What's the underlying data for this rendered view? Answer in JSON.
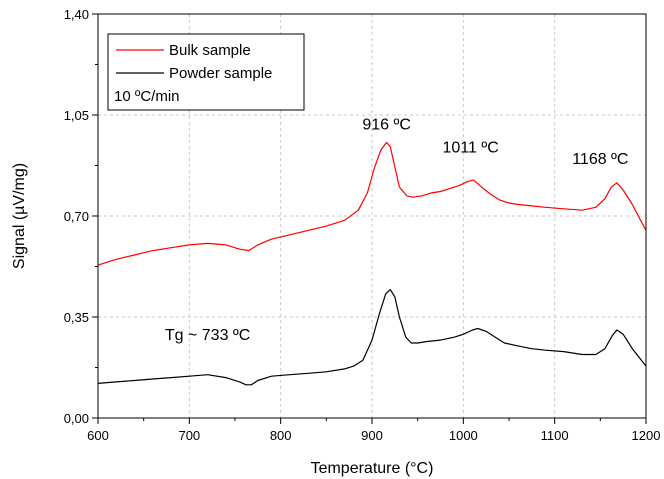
{
  "chart_data": {
    "type": "line",
    "xlabel": "Temperature (°C)",
    "ylabel": "Signal (µV/mg)",
    "xlim": [
      600,
      1200
    ],
    "ylim": [
      0.0,
      1.4
    ],
    "x_ticks": [
      600,
      700,
      800,
      900,
      1000,
      1100,
      1200
    ],
    "x_tick_labels": [
      "600",
      "700",
      "800",
      "900",
      "1000",
      "1100",
      "1200"
    ],
    "y_ticks": [
      0.0,
      0.35,
      0.7,
      1.05,
      1.4
    ],
    "y_tick_labels": [
      "0,00",
      "0,35",
      "0,70",
      "1,05",
      "1,40"
    ],
    "grid": true,
    "legend_position": "top-left",
    "legend_note": "10 ºC/min",
    "series": [
      {
        "name": "Bulk sample",
        "color": "#ff0000",
        "x": [
          600,
          620,
          640,
          660,
          680,
          700,
          720,
          740,
          755,
          765,
          775,
          790,
          810,
          830,
          850,
          870,
          885,
          895,
          903,
          910,
          916,
          920,
          925,
          930,
          938,
          945,
          955,
          965,
          975,
          985,
          995,
          1005,
          1011,
          1020,
          1030,
          1040,
          1050,
          1060,
          1075,
          1090,
          1110,
          1130,
          1145,
          1155,
          1162,
          1168,
          1175,
          1185,
          1195,
          1200
        ],
        "y": [
          0.53,
          0.55,
          0.565,
          0.58,
          0.59,
          0.6,
          0.605,
          0.6,
          0.585,
          0.58,
          0.6,
          0.62,
          0.635,
          0.65,
          0.665,
          0.685,
          0.72,
          0.78,
          0.87,
          0.93,
          0.955,
          0.94,
          0.87,
          0.8,
          0.77,
          0.765,
          0.77,
          0.78,
          0.785,
          0.795,
          0.805,
          0.82,
          0.825,
          0.8,
          0.775,
          0.755,
          0.745,
          0.74,
          0.735,
          0.73,
          0.725,
          0.72,
          0.73,
          0.76,
          0.8,
          0.815,
          0.79,
          0.74,
          0.68,
          0.65
        ]
      },
      {
        "name": "Powder sample",
        "color": "#000000",
        "x": [
          600,
          620,
          640,
          660,
          680,
          700,
          720,
          740,
          755,
          762,
          768,
          775,
          790,
          810,
          830,
          850,
          870,
          880,
          890,
          900,
          908,
          915,
          920,
          925,
          930,
          937,
          943,
          950,
          960,
          975,
          990,
          1000,
          1010,
          1016,
          1025,
          1035,
          1045,
          1060,
          1075,
          1090,
          1110,
          1130,
          1145,
          1155,
          1163,
          1168,
          1175,
          1185,
          1195,
          1200
        ],
        "y": [
          0.12,
          0.125,
          0.13,
          0.135,
          0.14,
          0.145,
          0.15,
          0.14,
          0.125,
          0.115,
          0.115,
          0.13,
          0.145,
          0.15,
          0.155,
          0.16,
          0.17,
          0.18,
          0.2,
          0.27,
          0.36,
          0.43,
          0.445,
          0.42,
          0.35,
          0.28,
          0.26,
          0.26,
          0.265,
          0.27,
          0.28,
          0.29,
          0.305,
          0.31,
          0.3,
          0.28,
          0.26,
          0.25,
          0.24,
          0.235,
          0.23,
          0.22,
          0.22,
          0.24,
          0.285,
          0.305,
          0.29,
          0.24,
          0.2,
          0.18
        ]
      }
    ],
    "annotations": [
      {
        "text": "916 ºC",
        "x": 916,
        "y": 1.0
      },
      {
        "text": "1011 ºC",
        "x": 1008,
        "y": 0.92
      },
      {
        "text": "1168 ºC",
        "x": 1150,
        "y": 0.88
      },
      {
        "text": "Tg ~ 733 ºC",
        "x": 720,
        "y": 0.27
      }
    ]
  }
}
